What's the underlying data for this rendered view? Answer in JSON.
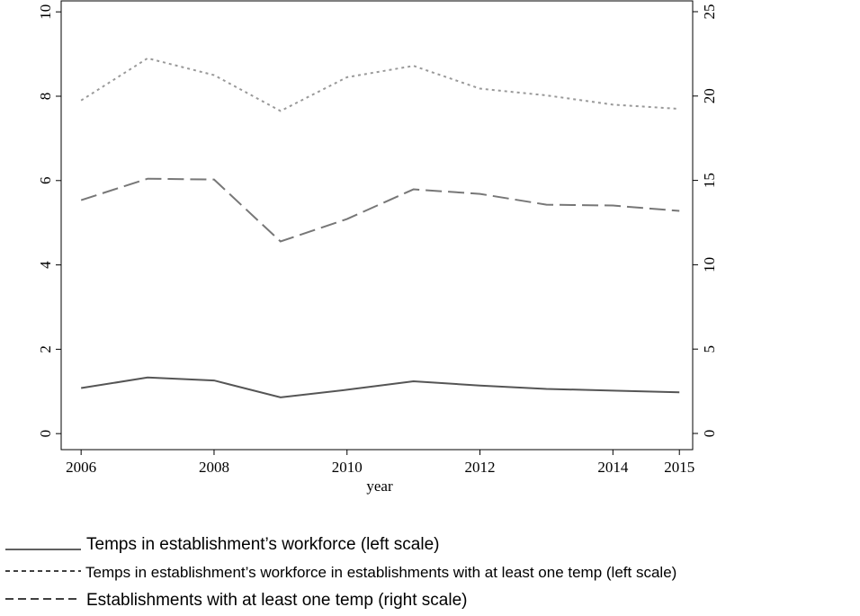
{
  "chart_data": {
    "type": "line",
    "x_label": "year",
    "x": [
      2006,
      2007,
      2008,
      2009,
      2010,
      2011,
      2012,
      2013,
      2014,
      2015
    ],
    "xlim": [
      2005.7,
      2015.2
    ],
    "xticks": [
      2006,
      2008,
      2010,
      2012,
      2014,
      2015
    ],
    "ylim": [
      -0.38,
      10.26
    ],
    "yticks": [
      0,
      2,
      4,
      6,
      8,
      10
    ],
    "y2lim": [
      -0.96,
      25.64
    ],
    "y2ticks": [
      0,
      5,
      10,
      15,
      20,
      25
    ],
    "series": [
      {
        "name": "Temps in establishment’s workforce (left scale)",
        "color": "#555555",
        "dash": "solid",
        "values": [
          1.08,
          1.33,
          1.26,
          0.86,
          1.04,
          1.24,
          1.14,
          1.06,
          1.02,
          0.98
        ]
      },
      {
        "name": "Temps in establishment’s workforce in establishments with at least one temp (left scale)",
        "color": "#999999",
        "dash": "dot",
        "values": [
          7.9,
          8.9,
          8.5,
          7.65,
          8.45,
          8.72,
          8.18,
          8.02,
          7.8,
          7.7
        ]
      },
      {
        "name": "Establishments with at least one temp (right scale)",
        "color": "#777777",
        "dash": "dash",
        "axis": "y2",
        "values": [
          13.83,
          15.1,
          15.05,
          11.38,
          12.71,
          14.47,
          14.2,
          13.56,
          13.51,
          13.19
        ]
      }
    ]
  }
}
